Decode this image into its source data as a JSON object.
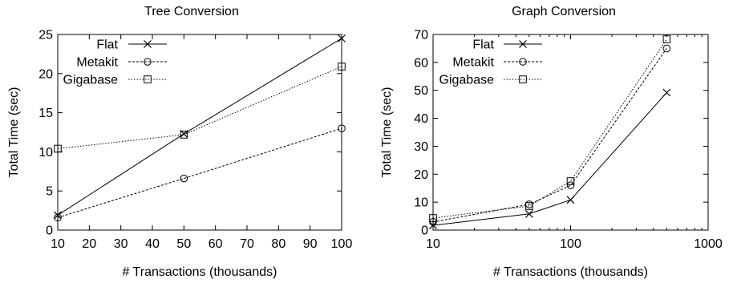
{
  "chart_data": [
    {
      "type": "line",
      "title": "Tree Conversion",
      "xlabel": "# Transactions (thousands)",
      "ylabel": "Total Time (sec)",
      "xscale": "linear",
      "xlim": [
        10,
        100
      ],
      "ylim": [
        0,
        25
      ],
      "xticks": [
        10,
        20,
        30,
        40,
        50,
        60,
        70,
        80,
        90,
        100
      ],
      "yticks": [
        0,
        5,
        10,
        15,
        20,
        25
      ],
      "grid": false,
      "legend_position": "top-left",
      "series": [
        {
          "name": "Flat",
          "marker": "x",
          "dash": "solid",
          "points": [
            [
              10,
              1.9
            ],
            [
              50,
              12.3
            ],
            [
              100,
              24.5
            ]
          ]
        },
        {
          "name": "Metakit",
          "marker": "circle",
          "dash": "dashed",
          "points": [
            [
              10,
              1.6
            ],
            [
              50,
              6.6
            ],
            [
              100,
              13.0
            ]
          ]
        },
        {
          "name": "Gigabase",
          "marker": "square",
          "dash": "dotted",
          "points": [
            [
              10,
              10.4
            ],
            [
              50,
              12.2
            ],
            [
              100,
              20.9
            ]
          ]
        }
      ]
    },
    {
      "type": "line",
      "title": "Graph Conversion",
      "xlabel": "# Transactions (thousands)",
      "ylabel": "Total Time (sec)",
      "xscale": "log",
      "xlim": [
        10,
        1000
      ],
      "ylim": [
        0,
        70
      ],
      "xticks": [
        10,
        100,
        1000
      ],
      "yticks": [
        0,
        10,
        20,
        30,
        40,
        50,
        60,
        70
      ],
      "grid": false,
      "legend_position": "top-left",
      "series": [
        {
          "name": "Flat",
          "marker": "x",
          "dash": "solid",
          "points": [
            [
              10,
              1.7
            ],
            [
              50,
              5.8
            ],
            [
              100,
              10.8
            ],
            [
              500,
              49.2
            ]
          ]
        },
        {
          "name": "Metakit",
          "marker": "circle",
          "dash": "dashed",
          "points": [
            [
              10,
              2.9
            ],
            [
              50,
              9.2
            ],
            [
              100,
              16.0
            ],
            [
              500,
              65.0
            ]
          ]
        },
        {
          "name": "Gigabase",
          "marker": "square",
          "dash": "dotted",
          "points": [
            [
              10,
              4.3
            ],
            [
              50,
              8.6
            ],
            [
              100,
              17.5
            ],
            [
              500,
              68.3
            ]
          ]
        }
      ]
    }
  ]
}
